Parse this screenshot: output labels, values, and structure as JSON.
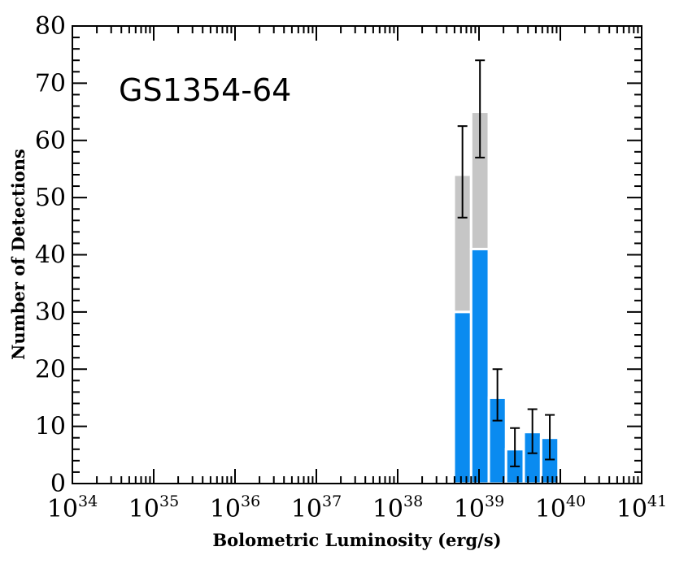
{
  "chart_data": {
    "type": "bar",
    "annotation": "GS1354-64",
    "xlabel": "Bolometric Luminosity (erg/s)",
    "ylabel": "Number of Detections",
    "xscale": "log",
    "xlim": [
      1e+34,
      1e+41
    ],
    "ylim": [
      0,
      80
    ],
    "x_ticks": [
      {
        "base": "10",
        "exp": "34",
        "value": 1e+34
      },
      {
        "base": "10",
        "exp": "35",
        "value": 1e+35
      },
      {
        "base": "10",
        "exp": "36",
        "value": 1e+36
      },
      {
        "base": "10",
        "exp": "37",
        "value": 1e+37
      },
      {
        "base": "10",
        "exp": "38",
        "value": 1e+38
      },
      {
        "base": "10",
        "exp": "39",
        "value": 1e+39
      },
      {
        "base": "10",
        "exp": "40",
        "value": 1e+40
      },
      {
        "base": "10",
        "exp": "41",
        "value": 1e+41
      }
    ],
    "y_ticks": [
      "0",
      "10",
      "20",
      "30",
      "40",
      "50",
      "60",
      "70",
      "80"
    ],
    "bins": [
      {
        "x_low": 4.9e+38,
        "x_high": 8e+38,
        "blue": 30,
        "total": 54,
        "err_low": 46.5,
        "err_high": 62.5
      },
      {
        "x_low": 8e+38,
        "x_high": 1.32e+39,
        "blue": 41,
        "total": 65,
        "err_low": 57,
        "err_high": 74
      },
      {
        "x_low": 1.32e+39,
        "x_high": 2.15e+39,
        "blue": 15,
        "total": 15,
        "err_low": 11,
        "err_high": 20
      },
      {
        "x_low": 2.15e+39,
        "x_high": 3.55e+39,
        "blue": 6,
        "total": 6,
        "err_low": 3,
        "err_high": 9.7
      },
      {
        "x_low": 3.55e+39,
        "x_high": 5.8e+39,
        "blue": 9,
        "total": 9,
        "err_low": 5.3,
        "err_high": 13
      },
      {
        "x_low": 5.8e+39,
        "x_high": 9.5e+39,
        "blue": 8,
        "total": 8,
        "err_low": 4.2,
        "err_high": 12
      }
    ],
    "colors": {
      "blue": "#0a8bf0",
      "gray": "#c6c6c6",
      "axis": "#000000",
      "error_bar": "#000000"
    },
    "grid": false,
    "legend": "none"
  }
}
